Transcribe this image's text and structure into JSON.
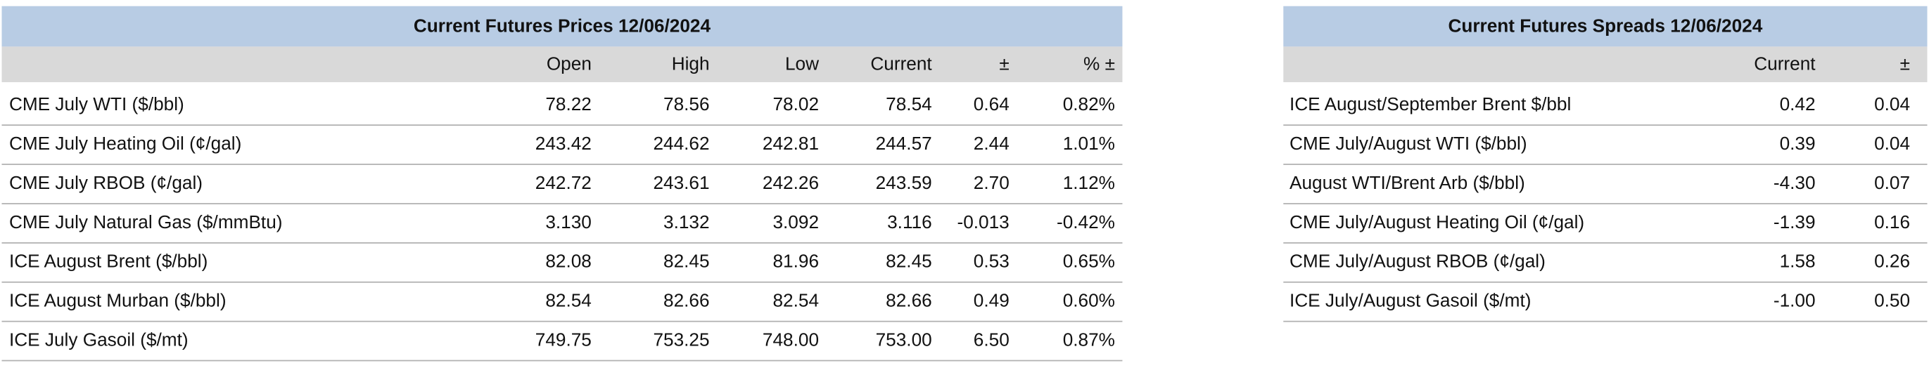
{
  "futures_prices": {
    "title": "Current Futures Prices 12/06/2024",
    "columns": [
      "Open",
      "High",
      "Low",
      "Current",
      "±",
      "% ±"
    ],
    "rows": [
      [
        "CME July WTI ($/bbl)",
        "78.22",
        "78.56",
        "78.02",
        "78.54",
        "0.64",
        "0.82%"
      ],
      [
        "CME July Heating Oil (¢/gal)",
        "243.42",
        "244.62",
        "242.81",
        "244.57",
        "2.44",
        "1.01%"
      ],
      [
        "CME July RBOB (¢/gal)",
        "242.72",
        "243.61",
        "242.26",
        "243.59",
        "2.70",
        "1.12%"
      ],
      [
        "CME July Natural Gas ($/mmBtu)",
        "3.130",
        "3.132",
        "3.092",
        "3.116",
        "-0.013",
        "-0.42%"
      ],
      [
        "ICE August Brent ($/bbl)",
        "82.08",
        "82.45",
        "81.96",
        "82.45",
        "0.53",
        "0.65%"
      ],
      [
        "ICE August Murban ($/bbl)",
        "82.54",
        "82.66",
        "82.54",
        "82.66",
        "0.49",
        "0.60%"
      ],
      [
        "ICE July Gasoil ($/mt)",
        "749.75",
        "753.25",
        "748.00",
        "753.00",
        "6.50",
        "0.87%"
      ]
    ]
  },
  "futures_spreads": {
    "title": "Current Futures Spreads 12/06/2024",
    "columns": [
      "Current",
      "±"
    ],
    "rows": [
      [
        "ICE August/September Brent $/bbl",
        "0.42",
        "0.04"
      ],
      [
        "CME July/August WTI ($/bbl)",
        "0.39",
        "0.04"
      ],
      [
        "August WTI/Brent Arb ($/bbl)",
        "-4.30",
        "0.07"
      ],
      [
        "CME July/August Heating Oil (¢/gal)",
        "-1.39",
        "0.16"
      ],
      [
        "CME July/August RBOB (¢/gal)",
        "1.58",
        "0.26"
      ],
      [
        "ICE July/August Gasoil ($/mt)",
        "-1.00",
        "0.50"
      ]
    ]
  }
}
